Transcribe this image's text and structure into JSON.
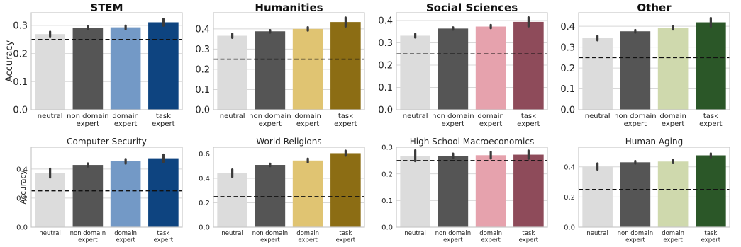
{
  "chart_data": [
    {
      "type": "bar",
      "title": "STEM",
      "ylabel": "Accuracy",
      "categories": [
        "neutral",
        "non domain\nexpert",
        "domain\nexpert",
        "task\nexpert"
      ],
      "values": [
        0.269,
        0.291,
        0.293,
        0.311
      ],
      "errors": [
        0.008,
        0.005,
        0.006,
        0.012
      ],
      "yticks": [
        0.0,
        0.1,
        0.2,
        0.3
      ],
      "ylim": [
        0,
        0.345
      ],
      "baseline": 0.25,
      "colors": [
        "#dcdcdc",
        "#555555",
        "#7399c6",
        "#0e4480"
      ]
    },
    {
      "type": "bar",
      "title": "Humanities",
      "categories": [
        "neutral",
        "non domain\nexpert",
        "domain\nexpert",
        "task\nexpert"
      ],
      "values": [
        0.366,
        0.388,
        0.4,
        0.434
      ],
      "errors": [
        0.01,
        0.006,
        0.008,
        0.022
      ],
      "yticks": [
        0.0,
        0.1,
        0.2,
        0.3,
        0.4
      ],
      "ylim": [
        0,
        0.48
      ],
      "baseline": 0.25,
      "colors": [
        "#dcdcdc",
        "#555555",
        "#e0c472",
        "#8c6d14"
      ]
    },
    {
      "type": "bar",
      "title": "Social Sciences",
      "categories": [
        "neutral",
        "non domain\nexpert",
        "domain\nexpert",
        "task\nexpert"
      ],
      "values": [
        0.332,
        0.364,
        0.373,
        0.394
      ],
      "errors": [
        0.008,
        0.005,
        0.007,
        0.02
      ],
      "yticks": [
        0.0,
        0.1,
        0.2,
        0.3,
        0.4
      ],
      "ylim": [
        0,
        0.435
      ],
      "baseline": 0.25,
      "colors": [
        "#dcdcdc",
        "#555555",
        "#e6a2ad",
        "#8e4b5a"
      ]
    },
    {
      "type": "bar",
      "title": "Other",
      "categories": [
        "neutral",
        "non domain\nexpert",
        "domain\nexpert",
        "task\nexpert"
      ],
      "values": [
        0.343,
        0.376,
        0.392,
        0.419
      ],
      "errors": [
        0.01,
        0.006,
        0.007,
        0.02
      ],
      "yticks": [
        0.0,
        0.1,
        0.2,
        0.3,
        0.4
      ],
      "ylim": [
        0,
        0.465
      ],
      "baseline": 0.25,
      "colors": [
        "#dcdcdc",
        "#555555",
        "#cfd9ad",
        "#2b5728"
      ]
    },
    {
      "type": "bar",
      "title": "Computer Security",
      "ylabel": "Accuracy",
      "categories": [
        "neutral",
        "non domain\nexpert",
        "domain\nexpert",
        "task\nexpert"
      ],
      "values": [
        0.372,
        0.428,
        0.453,
        0.474
      ],
      "errors": [
        0.03,
        0.01,
        0.015,
        0.025
      ],
      "yticks": [
        0.0,
        0.2,
        0.4
      ],
      "ylim": [
        0,
        0.55
      ],
      "baseline": 0.25,
      "colors": [
        "#dcdcdc",
        "#555555",
        "#7399c6",
        "#0e4480"
      ]
    },
    {
      "type": "bar",
      "title": "World Religions",
      "categories": [
        "neutral",
        "non domain\nexpert",
        "domain\nexpert",
        "task\nexpert"
      ],
      "values": [
        0.442,
        0.51,
        0.546,
        0.606
      ],
      "errors": [
        0.03,
        0.01,
        0.015,
        0.02
      ],
      "yticks": [
        0.0,
        0.2,
        0.4,
        0.6
      ],
      "ylim": [
        0,
        0.655
      ],
      "baseline": 0.25,
      "colors": [
        "#dcdcdc",
        "#555555",
        "#e0c472",
        "#8c6d14"
      ]
    },
    {
      "type": "bar",
      "title": "High School Macroeconomics",
      "categories": [
        "neutral",
        "non domain\nexpert",
        "domain\nexpert",
        "task\nexpert"
      ],
      "values": [
        0.268,
        0.268,
        0.27,
        0.272
      ],
      "errors": [
        0.02,
        0.008,
        0.012,
        0.015
      ],
      "yticks": [
        0.0,
        0.1,
        0.2,
        0.3
      ],
      "ylim": [
        0,
        0.3
      ],
      "baseline": 0.25,
      "colors": [
        "#dcdcdc",
        "#555555",
        "#e6a2ad",
        "#8e4b5a"
      ]
    },
    {
      "type": "bar",
      "title": "Human Aging",
      "categories": [
        "neutral",
        "non domain\nexpert",
        "domain\nexpert",
        "task\nexpert"
      ],
      "values": [
        0.402,
        0.43,
        0.435,
        0.476
      ],
      "errors": [
        0.02,
        0.008,
        0.01,
        0.012
      ],
      "yticks": [
        0.0,
        0.2,
        0.4
      ],
      "ylim": [
        0,
        0.53
      ],
      "baseline": 0.25,
      "colors": [
        "#dcdcdc",
        "#555555",
        "#cfd9ad",
        "#2b5728"
      ]
    }
  ]
}
